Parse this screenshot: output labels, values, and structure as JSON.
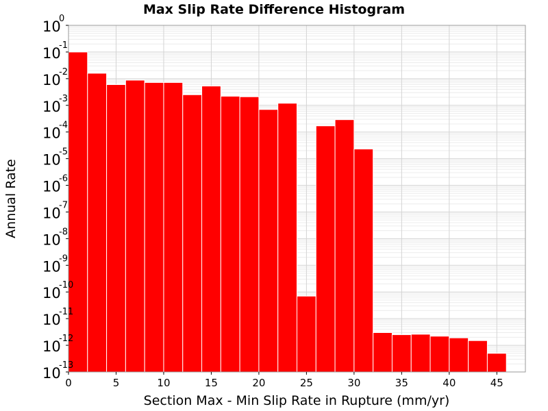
{
  "chart_data": {
    "type": "bar",
    "title": "Max Slip Rate Difference Histogram",
    "xlabel": "Section Max - Min Slip Rate in Rupture (mm/yr)",
    "ylabel": "Annual Rate",
    "yscale": "log",
    "xlim": [
      0,
      48
    ],
    "ylim": [
      1e-13,
      1
    ],
    "bin_width": 2,
    "x_ticks": [
      0,
      5,
      10,
      15,
      20,
      25,
      30,
      35,
      40,
      45
    ],
    "y_tick_exponents": [
      0,
      -1,
      -2,
      -3,
      -4,
      -5,
      -6,
      -7,
      -8,
      -9,
      -10,
      -11,
      -12,
      -13
    ],
    "y_tick_base": "10",
    "grid": true,
    "bar_color": "#ff0000",
    "bins_left_edge": [
      0,
      2,
      4,
      6,
      8,
      10,
      12,
      14,
      16,
      18,
      20,
      22,
      24,
      26,
      28,
      30,
      32,
      34,
      36,
      38,
      40,
      42,
      44
    ],
    "values": [
      0.1,
      0.016,
      0.006,
      0.0088,
      0.0072,
      0.0072,
      0.0025,
      0.0053,
      0.0022,
      0.0021,
      0.0007,
      0.0012,
      7e-11,
      0.00017,
      0.00029,
      2.3e-05,
      3e-12,
      2.5e-12,
      2.6e-12,
      2.2e-12,
      1.9e-12,
      1.5e-12,
      5e-13
    ]
  }
}
